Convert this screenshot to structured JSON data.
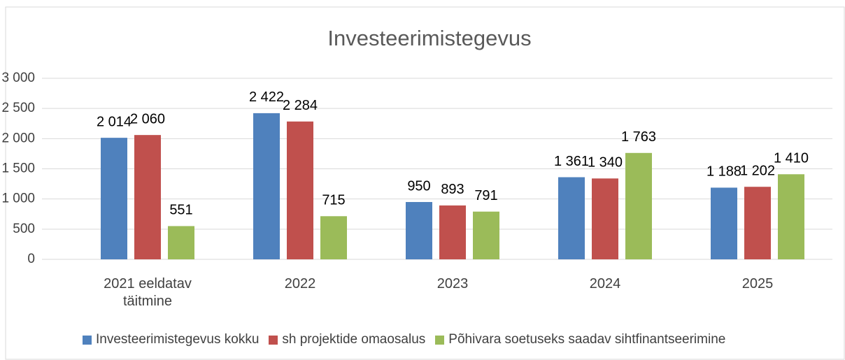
{
  "chart_data": {
    "type": "bar",
    "title": "Investeerimistegevus",
    "categories": [
      "2021 eeldatav täitmine",
      "2022",
      "2023",
      "2024",
      "2025"
    ],
    "series": [
      {
        "name": "Investeerimistegevus kokku",
        "color": "#4f81bd",
        "values": [
          2014,
          2422,
          950,
          1361,
          1188
        ],
        "value_labels": [
          "2 014",
          "2 422",
          "950",
          "1 361",
          "1 188"
        ]
      },
      {
        "name": "sh projektide omaosalus",
        "color": "#c0504d",
        "values": [
          2060,
          2284,
          893,
          1340,
          1202
        ],
        "value_labels": [
          "2 060",
          "2 284",
          "893",
          "1 340",
          "1 202"
        ]
      },
      {
        "name": "Põhivara soetuseks saadav sihtfinantseerimine",
        "color": "#9bbb59",
        "values": [
          551,
          715,
          791,
          1763,
          1410
        ],
        "value_labels": [
          "551",
          "715",
          "791",
          "1 763",
          "1 410"
        ]
      }
    ],
    "ylim": [
      0,
      3000
    ],
    "yticks": [
      0,
      500,
      {
        "value": 1000,
        "label": "1 000"
      },
      {
        "value": 1500,
        "label": "1 500"
      },
      {
        "value": 2000,
        "label": "2 000"
      },
      {
        "value": 2500,
        "label": "2 500"
      },
      {
        "value": 3000,
        "label": "3 000"
      }
    ],
    "grid": true,
    "legend": "bottom"
  }
}
